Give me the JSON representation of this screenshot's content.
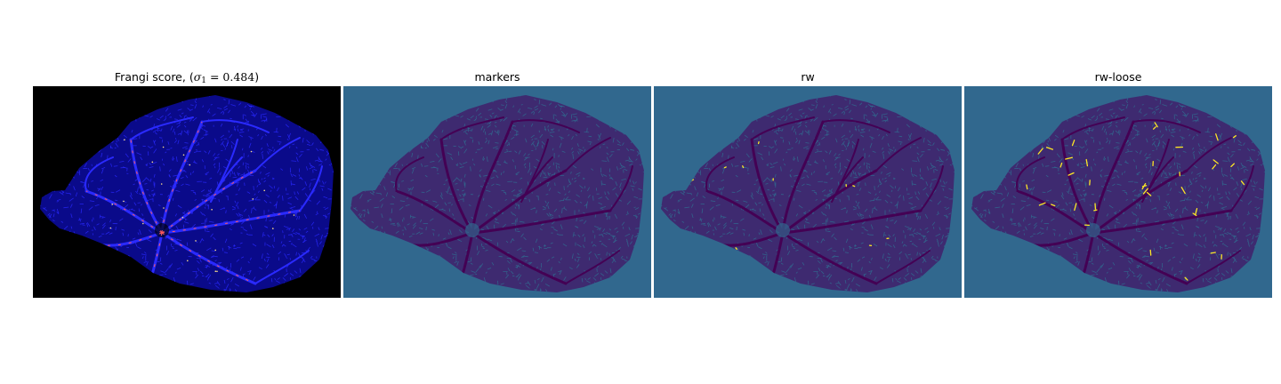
{
  "panels": [
    {
      "id": "frangi",
      "title_prefix": "Frangi score, (",
      "title_math_symbol": "σ",
      "title_math_subscript": "1",
      "title_math_rest": " = 0.484",
      "title_suffix": ")",
      "background_color": "#000000",
      "mask_color": "#0a0a8a",
      "vessel_color": "#2a2aff",
      "highlight_color": "#ff5a5a",
      "bright_color": "#ffe28a"
    },
    {
      "id": "markers",
      "title": "markers",
      "background_color": "#31688e",
      "mask_color": "#3e2a70",
      "vessel_color": "#440154"
    },
    {
      "id": "rw",
      "title": "rw",
      "background_color": "#31688e",
      "mask_color": "#3e2a70",
      "vessel_color": "#440154",
      "highlight_color": "#fde725"
    },
    {
      "id": "rw-loose",
      "title": "rw-loose",
      "background_color": "#31688e",
      "mask_color": "#3e2a70",
      "vessel_color": "#440154",
      "highlight_color": "#fde725"
    }
  ]
}
